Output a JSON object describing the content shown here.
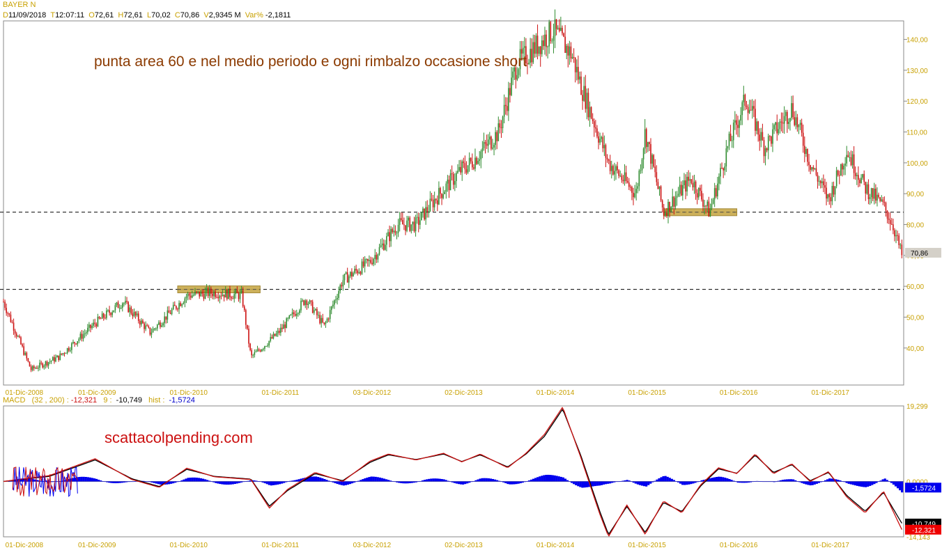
{
  "header": {
    "symbol": "BAYER N",
    "date_label": "D",
    "date": "11/09/2018",
    "time_label": "T",
    "time": "12:07:11",
    "open_label": "O",
    "open": "72,61",
    "high_label": "H",
    "high": "72,61",
    "low_label": "L",
    "low": "70,02",
    "close_label": "C",
    "close": "70,86",
    "volume_label": "V",
    "volume": "2,9345 M",
    "var_label": "Var%",
    "var": "-2,1811"
  },
  "macd_header": {
    "name": "MACD",
    "params": "(32 , 200) :",
    "value": "-12,321",
    "signal_label": "9 :",
    "signal": "-10,749",
    "hist_label": "hist :",
    "hist": "-1,5724"
  },
  "annotations": {
    "price_note": "punta area 60 e nel medio periodo e ogni rimbalzo occasione short",
    "watermark": "scattacolpending.com"
  },
  "colors": {
    "up_candle": "#2e8b2e",
    "down_candle": "#cc1111",
    "macd_line": "#cc1111",
    "signal_line": "#000000",
    "histogram": "#0000ee",
    "axis_text": "#c8a000",
    "annotation": "#8b3a00",
    "watermark": "#cc1111",
    "highlight_zone": "#c8a94a"
  },
  "chart_data": [
    {
      "type": "line",
      "title": "BAYER N",
      "x_tick_labels": [
        "01-Dic-2008",
        "01-Dic-2009",
        "01-Dic-2010",
        "01-Dic-2011",
        "03-Dic-2012",
        "02-Dic-2013",
        "01-Dic-2014",
        "01-Dic-2015",
        "01-Dic-2016",
        "01-Dic-2017"
      ],
      "x": [
        2008.9,
        2009.2,
        2009.5,
        2009.9,
        2010.2,
        2010.5,
        2010.9,
        2011.2,
        2011.5,
        2011.6,
        2011.9,
        2012.2,
        2012.4,
        2012.6,
        2012.9,
        2013.2,
        2013.4,
        2013.6,
        2013.9,
        2014.0,
        2014.3,
        2014.5,
        2014.9,
        2015.1,
        2015.2,
        2015.5,
        2015.8,
        2015.9,
        2016.1,
        2016.4,
        2016.6,
        2016.8,
        2017.0,
        2017.2,
        2017.5,
        2017.7,
        2017.9,
        2018.1,
        2018.3,
        2018.5,
        2018.6,
        2018.7
      ],
      "y": [
        55,
        33,
        37,
        48,
        55,
        45,
        57,
        58,
        57,
        37,
        45,
        56,
        47,
        62,
        68,
        80,
        80,
        88,
        98,
        100,
        110,
        132,
        143,
        135,
        125,
        100,
        90,
        110,
        84,
        95,
        84,
        105,
        121,
        105,
        118,
        100,
        88,
        104,
        92,
        86,
        80,
        70
      ],
      "ylim": [
        28,
        146
      ],
      "y_tick_labels": [
        "40,00",
        "50,00",
        "60,00",
        "70,00",
        "80,00",
        "90,00",
        "100,00",
        "110,00",
        "120,00",
        "130,00",
        "140,00"
      ],
      "y_ticks": [
        40,
        50,
        60,
        70,
        80,
        90,
        100,
        110,
        120,
        130,
        140
      ],
      "last_price_label": "70,86",
      "last_price": 70.86,
      "reference_levels": [
        84,
        59
      ],
      "highlight_zones": [
        {
          "x_start": 2010.8,
          "x_end": 2011.7,
          "y": 59
        },
        {
          "x_start": 2016.1,
          "x_end": 2016.9,
          "y": 84
        }
      ]
    },
    {
      "type": "line",
      "title": "MACD",
      "x_tick_labels": [
        "01-Dic-2008",
        "01-Dic-2009",
        "01-Dic-2010",
        "01-Dic-2011",
        "03-Dic-2012",
        "02-Dic-2013",
        "01-Dic-2014",
        "01-Dic-2015",
        "01-Dic-2016",
        "01-Dic-2017"
      ],
      "series": [
        {
          "name": "MACD",
          "x": [
            2008.9,
            2009.4,
            2009.9,
            2010.3,
            2010.6,
            2010.9,
            2011.2,
            2011.6,
            2011.8,
            2012.0,
            2012.3,
            2012.6,
            2012.9,
            2013.1,
            2013.4,
            2013.7,
            2013.9,
            2014.1,
            2014.4,
            2014.6,
            2014.8,
            2015.0,
            2015.2,
            2015.4,
            2015.5,
            2015.7,
            2015.9,
            2016.1,
            2016.3,
            2016.5,
            2016.7,
            2016.9,
            2017.1,
            2017.3,
            2017.5,
            2017.7,
            2017.9,
            2018.1,
            2018.3,
            2018.5,
            2018.7
          ],
          "values": [
            0.0,
            1.5,
            5.8,
            0.5,
            -1.5,
            3.4,
            1.2,
            0.5,
            -6.8,
            -2.0,
            2.3,
            0.0,
            5.2,
            7.0,
            5.5,
            7.2,
            5.0,
            7.0,
            3.5,
            7.2,
            12.0,
            19.0,
            6.0,
            -8.0,
            -14.1,
            -6.0,
            -13.5,
            -5.0,
            -8.0,
            -1.0,
            3.5,
            2.0,
            7.0,
            2.0,
            4.5,
            0.0,
            2.5,
            -4.0,
            -8.0,
            -2.5,
            -12.3
          ]
        },
        {
          "name": "9",
          "x": [
            2008.9,
            2009.4,
            2009.9,
            2010.3,
            2010.6,
            2010.9,
            2011.2,
            2011.6,
            2011.8,
            2012.0,
            2012.3,
            2012.6,
            2012.9,
            2013.1,
            2013.4,
            2013.7,
            2013.9,
            2014.1,
            2014.4,
            2014.6,
            2014.8,
            2015.0,
            2015.2,
            2015.4,
            2015.5,
            2015.7,
            2015.9,
            2016.1,
            2016.3,
            2016.5,
            2016.7,
            2016.9,
            2017.1,
            2017.3,
            2017.5,
            2017.7,
            2017.9,
            2018.1,
            2018.3,
            2018.5,
            2018.7
          ],
          "values": [
            0.0,
            1.3,
            5.5,
            0.7,
            -1.3,
            3.1,
            1.3,
            0.6,
            -6.3,
            -2.3,
            2.0,
            0.2,
            4.9,
            6.8,
            5.6,
            7.0,
            5.1,
            6.8,
            3.7,
            7.0,
            11.5,
            18.5,
            6.5,
            -7.3,
            -13.6,
            -6.4,
            -13.0,
            -5.4,
            -7.7,
            -1.3,
            3.2,
            2.1,
            6.7,
            2.3,
            4.3,
            0.2,
            2.3,
            -3.6,
            -7.6,
            -2.8,
            -10.7
          ]
        }
      ],
      "histogram_label": "hist",
      "ylim": [
        -14.143,
        19.299
      ],
      "y_tick_labels": [
        "19,299",
        "0,0000",
        "-14,143"
      ],
      "y_ticks": [
        19.299,
        0,
        -14.143
      ],
      "value_tags": [
        {
          "label": "-1,5724",
          "value": -1.5724,
          "color": "#0000ee"
        },
        {
          "label": "-10,749",
          "value": -10.749,
          "color": "#000000"
        },
        {
          "label": "-12,321",
          "value": -12.321,
          "color": "#ee0000"
        }
      ]
    }
  ]
}
